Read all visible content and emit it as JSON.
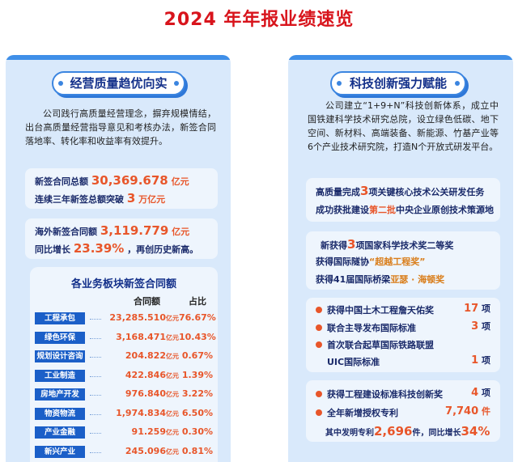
{
  "page_title": "2024 年年报业绩速览",
  "left": {
    "heading": "经营质量趋优向实",
    "paragraph": "公司践行高质量经营理念，摒弃规模情结，出台高质量经营指导意见和考核办法，新签合同落地率、转化率和收益率有效提升。",
    "box1": {
      "line1_label": "新签合同总额",
      "line1_value": "30,369.678",
      "line1_unit": "亿元",
      "line2_label": "连续三年新签总额突破",
      "line2_value": "3",
      "line2_unit": "万亿元"
    },
    "box2": {
      "line1_label": "海外新签合同额",
      "line1_value": "3,119.779",
      "line1_unit": "亿元",
      "line2_label": "同比增长",
      "line2_value": "23.39%",
      "line2_suffix": "，再创历史新高。"
    },
    "table": {
      "title": "各业务板块新签合同额",
      "col_amount": "合同额",
      "col_ratio": "占比",
      "unit": "亿元",
      "rows": [
        {
          "name": "工程承包",
          "amount": "23,285.510",
          "ratio": "76.67%"
        },
        {
          "name": "绿色环保",
          "amount": "3,168.471",
          "ratio": "10.43%"
        },
        {
          "name": "规划设计咨询",
          "amount": "204.822",
          "ratio": "0.67%"
        },
        {
          "name": "工业制造",
          "amount": "422.846",
          "ratio": "1.39%"
        },
        {
          "name": "房地产开发",
          "amount": "976.840",
          "ratio": "3.22%"
        },
        {
          "name": "物资物流",
          "amount": "1,974.834",
          "ratio": "6.50%"
        },
        {
          "name": "产业金融",
          "amount": "91.259",
          "ratio": "0.30%"
        },
        {
          "name": "新兴产业",
          "amount": "245.096",
          "ratio": "0.81%"
        }
      ]
    }
  },
  "right": {
    "heading": "科技创新强力赋能",
    "paragraph": "公司建立“1+9+N”科技创新体系，成立中国铁建科学技术研究总院，设立绿色低碳、地下空间、新材料、高端装备、新能源、竹基产业等6个产业技术研究院，打造N个开放式研发平台。",
    "box1": {
      "l1_a": "高质量完成",
      "l1_num": "3",
      "l1_b": "项关键核心技术公关研发任务",
      "l2_a": "成功获批建设",
      "l2_hl": "第二批",
      "l2_b": "中央企业原创技术策源地"
    },
    "box2": {
      "l1_a": "新获得",
      "l1_num": "3",
      "l1_b": "项国家科学技术奖二等奖",
      "l2_a": "获得国际隧协",
      "l2_hl": "“超越工程奖”",
      "l3_a": "获得",
      "l3_num": "41",
      "l3_b": "届国际桥梁",
      "l3_hl": "亚瑟 · 海顿奖"
    },
    "box3": {
      "i1": "获得中国土木工程詹天佑奖",
      "i1_num": "17",
      "i1_unit": "项",
      "i2": "联合主导发布国际标准",
      "i2_num": "3",
      "i2_unit": "项",
      "i3": "首次联合起草国际铁路联盟",
      "i3_sub": "UIC国际标准",
      "i3_num": "1",
      "i3_unit": "项"
    },
    "box4": {
      "i1": "获得工程建设标准科技创新奖",
      "i1_num": "4",
      "i1_unit": "项",
      "i2": "全年新增授权专利",
      "i2_num": "7,740",
      "i2_unit": "件",
      "l3_a": "其中发明专利",
      "l3_num": "2,696",
      "l3_b": "件，同比增长",
      "l3_pct": "34%"
    }
  }
}
